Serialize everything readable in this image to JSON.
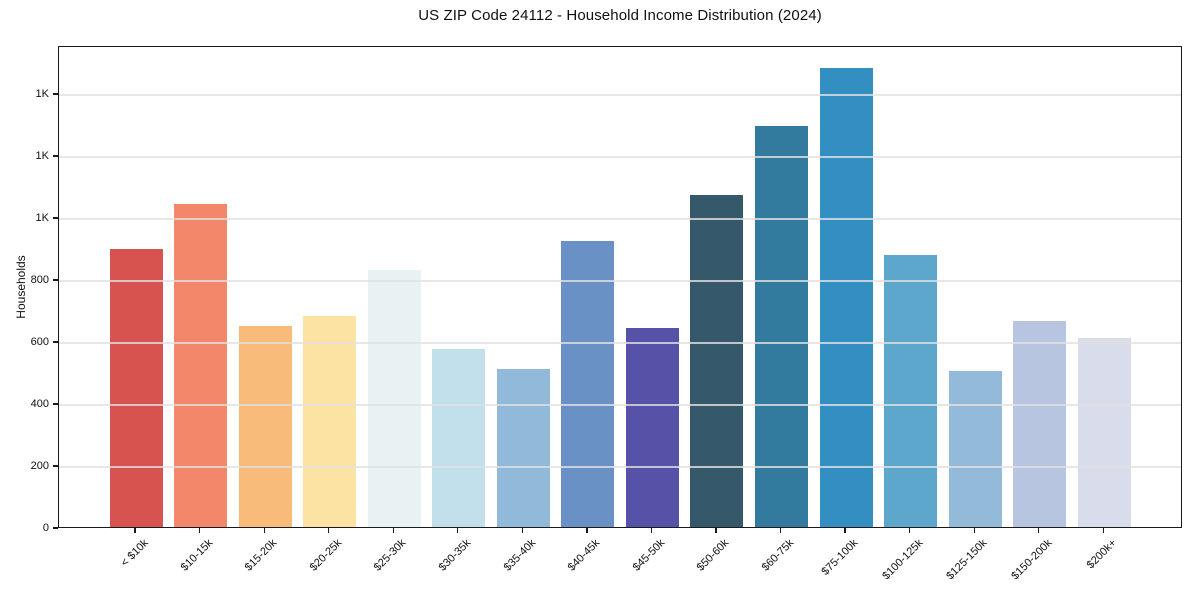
{
  "chart_data": {
    "type": "bar",
    "title": "US ZIP Code 24112 - Household Income Distribution (2024)",
    "xlabel": "",
    "ylabel": "Households",
    "categories": [
      "< $10k",
      "$10-15k",
      "$15-20k",
      "$20-25k",
      "$25-30k",
      "$30-35k",
      "$35-40k",
      "$40-45k",
      "$45-50k",
      "$50-60k",
      "$60-75k",
      "$75-100k",
      "$100-125k",
      "$125-150k",
      "$150-200k",
      "$200k+"
    ],
    "values": [
      900,
      1047,
      651,
      685,
      832,
      578,
      513,
      925,
      645,
      1074,
      1300,
      1486,
      880,
      506,
      668,
      612
    ],
    "bar_colors": [
      "#d6534f",
      "#f2876a",
      "#f9bb7a",
      "#fde3a3",
      "#e8f2f3",
      "#c1e0ec",
      "#90b9da",
      "#6a91c5",
      "#5552a8",
      "#35596b",
      "#327a9e",
      "#338fc1",
      "#5ea7cc",
      "#94bada",
      "#b7c5e0",
      "#d9dcea"
    ],
    "ylim": [
      0,
      1555
    ],
    "yticks": [
      {
        "value": 0,
        "label": "0"
      },
      {
        "value": 200,
        "label": "200"
      },
      {
        "value": 400,
        "label": "400"
      },
      {
        "value": 600,
        "label": "600"
      },
      {
        "value": 800,
        "label": "800"
      },
      {
        "value": 1000,
        "label": "1K"
      },
      {
        "value": 1200,
        "label": "1K"
      },
      {
        "value": 1400,
        "label": "1K"
      }
    ],
    "grid": "horizontal-major",
    "legend": "none",
    "background_color": "#ffffff",
    "spine_color": "#1a1a1a",
    "gridline_color": "#e5e5e5",
    "x_tick_label_rotation_deg": 45
  }
}
